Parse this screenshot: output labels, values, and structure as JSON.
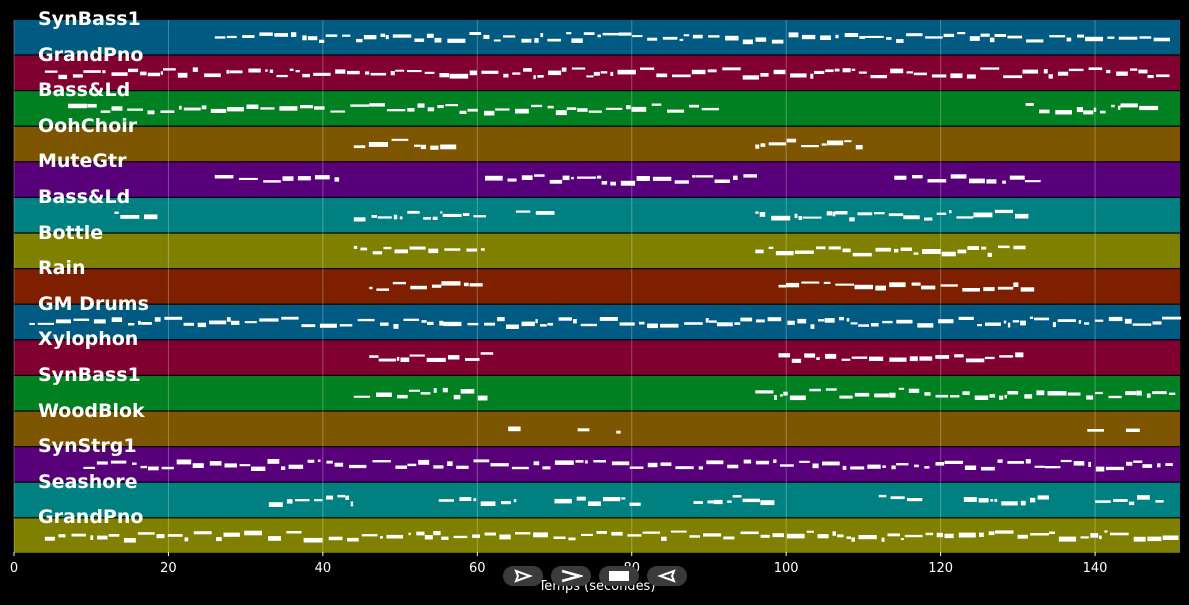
{
  "xaxis": {
    "label": "Temps (secondes)",
    "ticks": [
      "0",
      "20",
      "40",
      "60",
      "80",
      "100",
      "120",
      "140"
    ],
    "range": [
      0,
      151
    ]
  },
  "tracks": [
    {
      "name": "SynBass1",
      "color": "#005a82"
    },
    {
      "name": "GrandPno",
      "color": "#800030"
    },
    {
      "name": "Bass&Ld",
      "color": "#008020"
    },
    {
      "name": "OohChoir",
      "color": "#7e5500"
    },
    {
      "name": "MuteGtr",
      "color": "#58007a"
    },
    {
      "name": "Bass&Ld",
      "color": "#008080"
    },
    {
      "name": "Bottle",
      "color": "#808000"
    },
    {
      "name": "Rain",
      "color": "#7e2000"
    },
    {
      "name": "GM Drums",
      "color": "#005a82"
    },
    {
      "name": "Xylophon",
      "color": "#800030"
    },
    {
      "name": "SynBass1",
      "color": "#008020"
    },
    {
      "name": "WoodBlok",
      "color": "#7e5500"
    },
    {
      "name": "SynStrg1",
      "color": "#58007a"
    },
    {
      "name": "Seashore",
      "color": "#008080"
    },
    {
      "name": "GrandPno",
      "color": "#808000"
    }
  ],
  "transport": {
    "play_icon": "play-outline-icon",
    "forward_icon": "forward-icon",
    "stop_icon": "stop-icon",
    "back_icon": "back-icon"
  }
}
